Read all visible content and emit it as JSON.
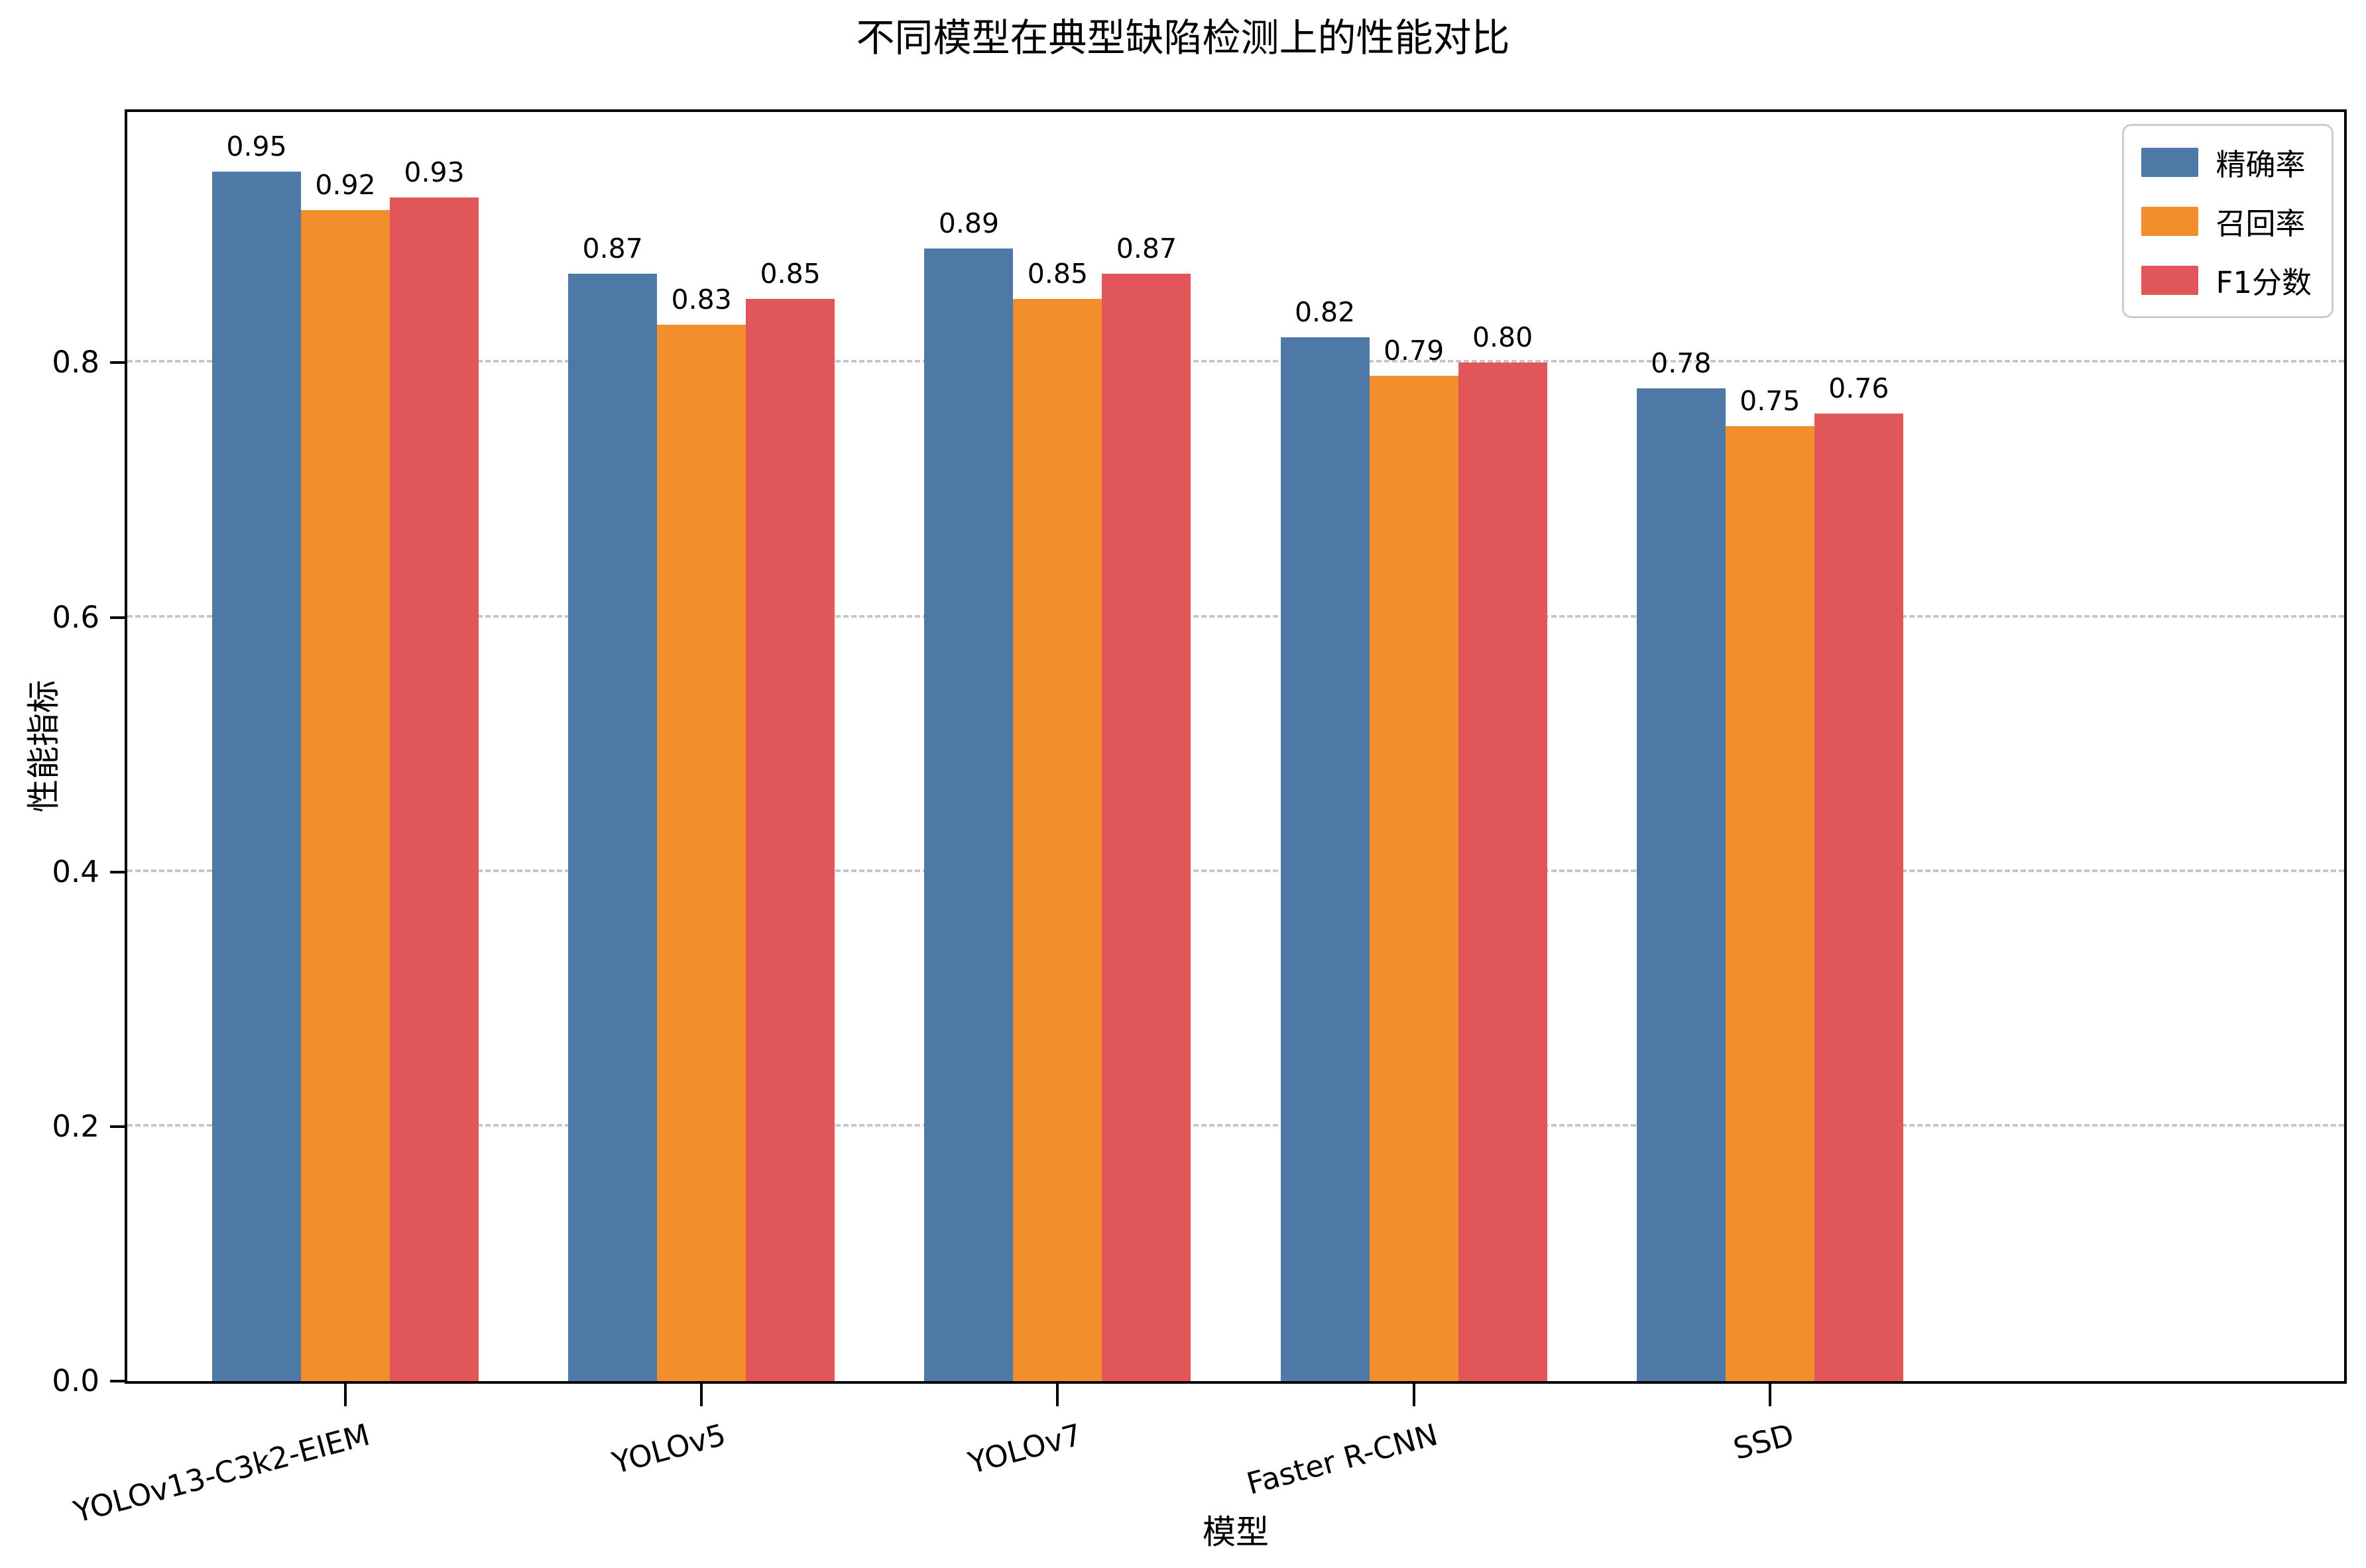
{
  "title": "不同模型在典型缺陷检测上的性能对比",
  "chart_data": {
    "type": "bar",
    "title": "不同模型在典型缺陷检测上的性能对比",
    "xlabel": "模型",
    "ylabel": "性能指标",
    "categories": [
      "YOLOv13-C3k2-EIEM",
      "YOLOv5",
      "YOLOv7",
      "Faster R-CNN",
      "SSD"
    ],
    "series": [
      {
        "key": "precision",
        "name": "精确率",
        "color": "#4E79A7",
        "values": [
          0.95,
          0.87,
          0.89,
          0.82,
          0.78
        ]
      },
      {
        "key": "recall",
        "name": "召回率",
        "color": "#F28E2B",
        "values": [
          0.92,
          0.83,
          0.85,
          0.79,
          0.75
        ]
      },
      {
        "key": "f1",
        "name": "F1分数",
        "color": "#E15759",
        "values": [
          0.93,
          0.85,
          0.87,
          0.8,
          0.76
        ]
      }
    ],
    "yticks": [
      0.0,
      0.2,
      0.4,
      0.6,
      0.8
    ],
    "ylim": [
      0,
      0.997
    ],
    "bar_label_decimals": 2,
    "ytick_decimals": 1,
    "xtick_rotation_deg": 15,
    "grid": {
      "axis": "y",
      "style": "dashed",
      "color": "#c8c8c8"
    },
    "legend_position": "upper right",
    "bar_width_units": 0.25,
    "group_gap_units": 1.0
  },
  "colors": {
    "precision_blue": "#4E79A7",
    "recall_orange": "#F28E2B",
    "f1_red": "#E15759",
    "gridline_gray": "#c8c8c8",
    "axis_black": "#000000",
    "legend_border_gray": "#cccccc"
  }
}
